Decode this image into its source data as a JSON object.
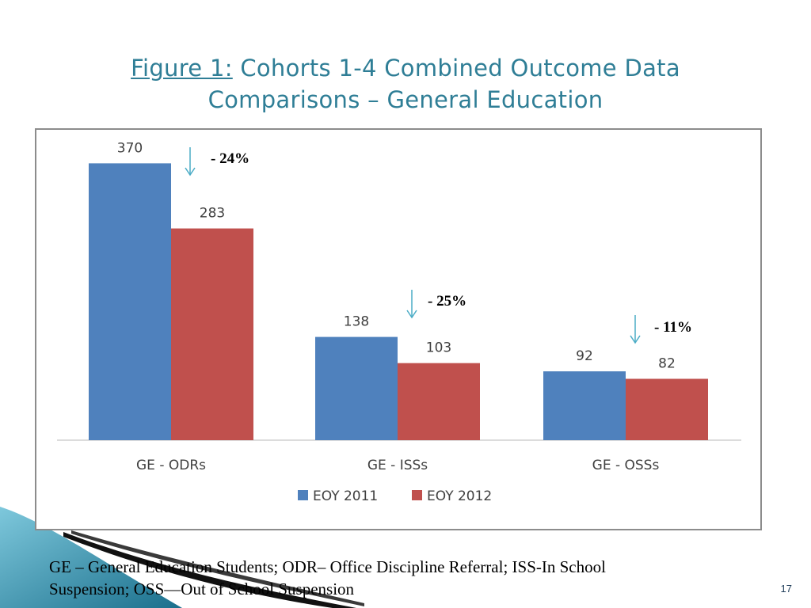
{
  "title": {
    "figure_label": "Figure 1:",
    "line1_rest": "Cohorts 1-4 Combined Outcome Data",
    "line2": "Comparisons – General Education"
  },
  "chart_data": {
    "type": "bar",
    "categories": [
      "GE - ODRs",
      "GE - ISSs",
      "GE - OSSs"
    ],
    "series": [
      {
        "name": "EOY 2011",
        "values": [
          370,
          138,
          92
        ],
        "color": "#4f81bd"
      },
      {
        "name": "EOY 2012",
        "values": [
          283,
          103,
          82
        ],
        "color": "#c0504d"
      }
    ],
    "ylim": [
      0,
      400
    ],
    "grid": false,
    "legend_position": "bottom",
    "annotations": [
      {
        "category": "GE - ODRs",
        "text": "- 24%"
      },
      {
        "category": "GE - ISSs",
        "text": "- 25%"
      },
      {
        "category": "GE - OSSs",
        "text": "- 11%"
      }
    ]
  },
  "annotation_arrow_icon": "down-arrow-icon",
  "arrow_color": "#4bacc6",
  "footnote": {
    "line1": "GE – General Education Students; ODR– Office Discipline Referral; ISS-In School",
    "line2": "Suspension; OSS—Out of School Suspension"
  },
  "page_number": "17",
  "theme_color": "#2f7e96"
}
